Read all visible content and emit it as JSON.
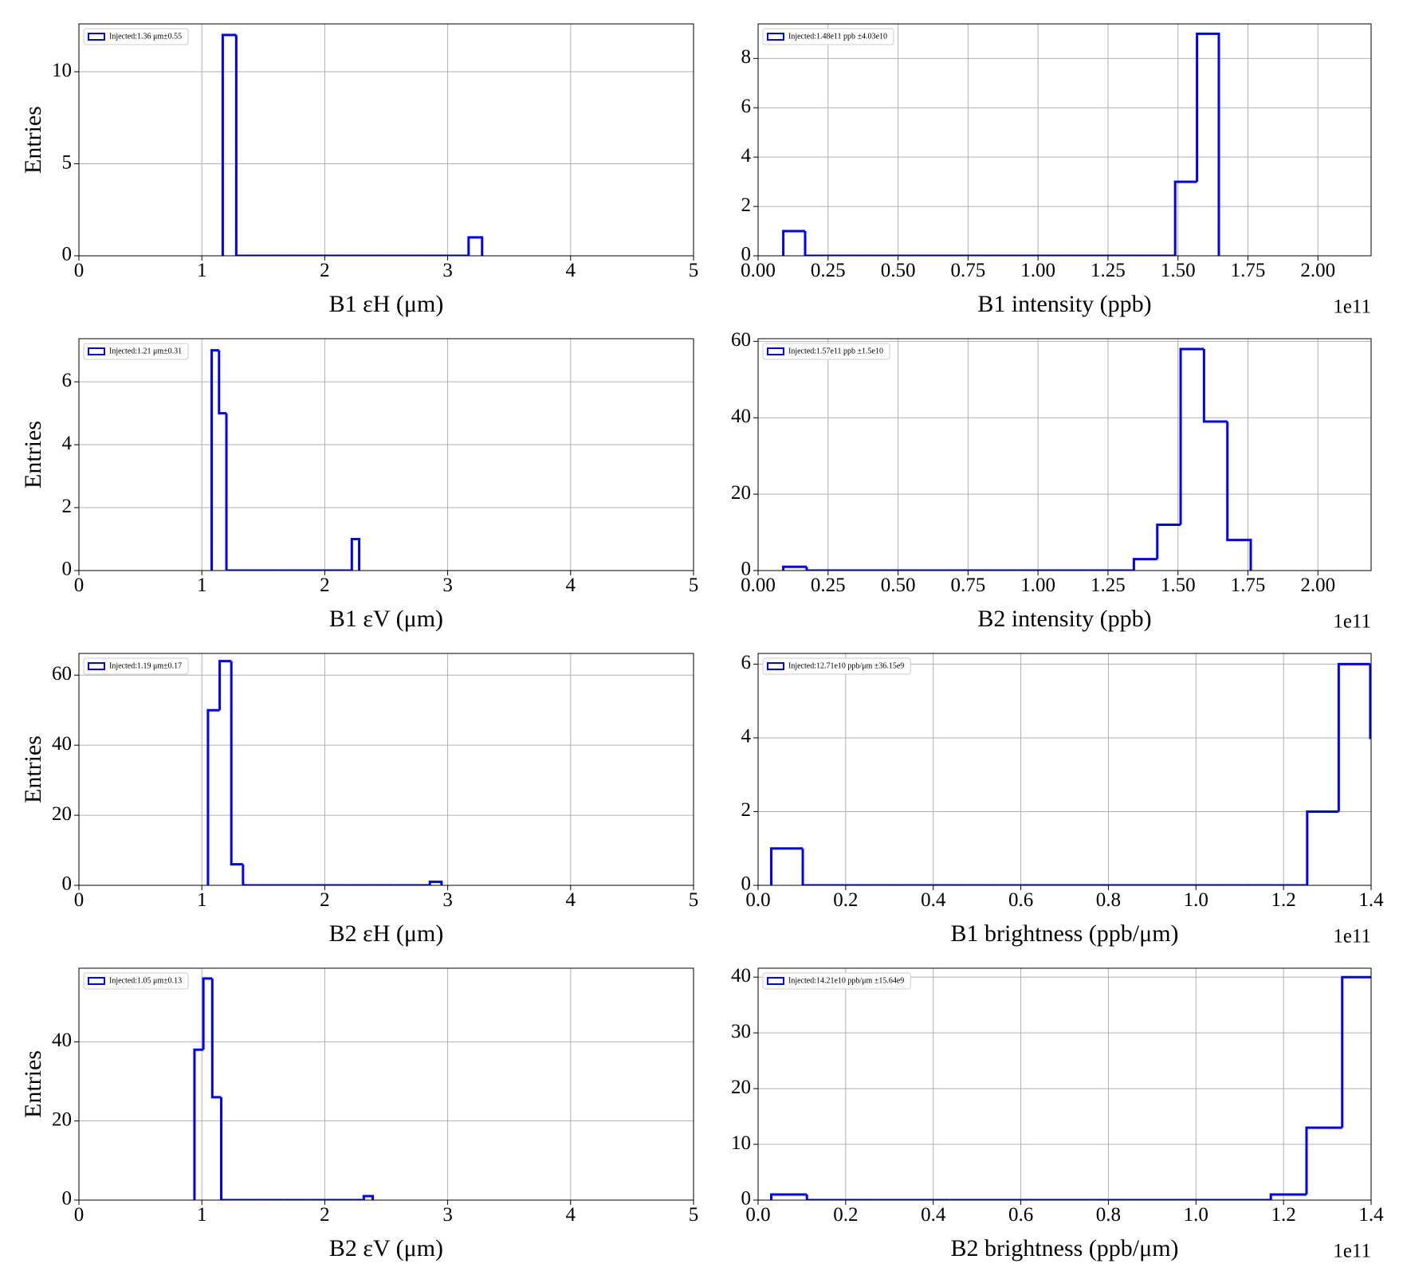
{
  "chart_data": [
    {
      "type": "histogram",
      "xlabel": "B1 εH (μm)",
      "ylabel": "Entries",
      "grid": true,
      "legend": "upper left",
      "xlim": [
        0,
        5
      ],
      "xticks": [
        0,
        1,
        2,
        3,
        4,
        5
      ],
      "ylim": [
        0,
        12.6
      ],
      "yticks": [
        0,
        5,
        10
      ],
      "bins": [
        1.17,
        1.28,
        1.38,
        1.49,
        1.59,
        1.7,
        1.8,
        1.91,
        2.01,
        2.12,
        2.23,
        2.33,
        2.44,
        2.54,
        2.65,
        2.75,
        2.86,
        2.96,
        3.07,
        3.17,
        3.28
      ],
      "series": [
        {
          "name": "Injected:1.36 μm±0.55",
          "color": "#0000ff",
          "values": [
            12,
            0,
            0,
            0,
            0,
            0,
            0,
            0,
            0,
            0,
            0,
            0,
            0,
            0,
            0,
            0,
            0,
            0,
            0,
            1
          ]
        }
      ]
    },
    {
      "type": "histogram",
      "xlabel": "B1 intensity (ppb)",
      "x_offset_label": "1e11",
      "grid": true,
      "legend": "upper left",
      "xlim": [
        0,
        2.19
      ],
      "xticks": [
        {
          "value": 0,
          "label": "0.00"
        },
        {
          "value": 0.25,
          "label": "0.25"
        },
        {
          "value": 0.5,
          "label": "0.50"
        },
        {
          "value": 0.75,
          "label": "0.75"
        },
        {
          "value": 1,
          "label": "1.00"
        },
        {
          "value": 1.25,
          "label": "1.25"
        },
        {
          "value": 1.5,
          "label": "1.50"
        },
        {
          "value": 1.75,
          "label": "1.75"
        },
        {
          "value": 2,
          "label": "2.00"
        }
      ],
      "ylim": [
        0,
        9.4
      ],
      "yticks": [
        0,
        2,
        4,
        6,
        8
      ],
      "bins": [
        0.09,
        0.168,
        0.246,
        0.323,
        0.401,
        0.479,
        0.557,
        0.635,
        0.712,
        0.79,
        0.868,
        0.946,
        1.024,
        1.101,
        1.179,
        1.257,
        1.335,
        1.413,
        1.49,
        1.568,
        1.646
      ],
      "series": [
        {
          "name": "Injected:1.48e11 ppb ±4.03e10",
          "color": "#0000ff",
          "values": [
            1,
            0,
            0,
            0,
            0,
            0,
            0,
            0,
            0,
            0,
            0,
            0,
            0,
            0,
            0,
            0,
            0,
            0,
            3,
            9
          ]
        }
      ]
    },
    {
      "type": "histogram",
      "xlabel": "B1 εV (μm)",
      "ylabel": "Entries",
      "grid": true,
      "legend": "upper left",
      "xlim": [
        0,
        5
      ],
      "xticks": [
        0,
        1,
        2,
        3,
        4,
        5
      ],
      "ylim": [
        0,
        7.37
      ],
      "yticks": [
        0,
        2,
        4,
        6
      ],
      "bins": [
        1.08,
        1.14,
        1.2,
        1.26,
        1.32,
        1.38,
        1.44,
        1.5,
        1.56,
        1.62,
        1.68,
        1.74,
        1.8,
        1.86,
        1.92,
        1.98,
        2.04,
        2.1,
        2.16,
        2.22,
        2.28
      ],
      "series": [
        {
          "name": "Injected:1.21 μm±0.31",
          "color": "#0000ff",
          "values": [
            7,
            5,
            0,
            0,
            0,
            0,
            0,
            0,
            0,
            0,
            0,
            0,
            0,
            0,
            0,
            0,
            0,
            0,
            0,
            1
          ]
        }
      ]
    },
    {
      "type": "histogram",
      "xlabel": "B2 intensity (ppb)",
      "x_offset_label": "1e11",
      "grid": true,
      "legend": "upper left",
      "xlim": [
        0,
        2.19
      ],
      "xticks": [
        {
          "value": 0,
          "label": "0.00"
        },
        {
          "value": 0.25,
          "label": "0.25"
        },
        {
          "value": 0.5,
          "label": "0.50"
        },
        {
          "value": 0.75,
          "label": "0.75"
        },
        {
          "value": 1,
          "label": "1.00"
        },
        {
          "value": 1.25,
          "label": "1.25"
        },
        {
          "value": 1.5,
          "label": "1.50"
        },
        {
          "value": 1.75,
          "label": "1.75"
        },
        {
          "value": 2,
          "label": "2.00"
        }
      ],
      "ylim": [
        0,
        60.7
      ],
      "yticks": [
        0,
        20,
        40,
        60
      ],
      "bins": [
        0.09,
        0.1735,
        0.257,
        0.3405,
        0.424,
        0.5075,
        0.591,
        0.6745,
        0.758,
        0.8415,
        0.925,
        1.0085,
        1.092,
        1.1755,
        1.259,
        1.3425,
        1.426,
        1.5095,
        1.593,
        1.6765,
        1.76
      ],
      "series": [
        {
          "name": "Injected:1.57e11 ppb ±1.5e10",
          "color": "#0000ff",
          "values": [
            1,
            0,
            0,
            0,
            0,
            0,
            0,
            0,
            0,
            0,
            0,
            0,
            0,
            0,
            0,
            3,
            12,
            58,
            39,
            8
          ]
        }
      ]
    },
    {
      "type": "histogram",
      "xlabel": "B2 εH (μm)",
      "ylabel": "Entries",
      "grid": true,
      "legend": "upper left",
      "xlim": [
        0,
        5
      ],
      "xticks": [
        0,
        1,
        2,
        3,
        4,
        5
      ],
      "ylim": [
        0,
        66.2
      ],
      "yticks": [
        0,
        20,
        40,
        60
      ],
      "bins": [
        1.05,
        1.145,
        1.24,
        1.335,
        1.43,
        1.525,
        1.62,
        1.715,
        1.81,
        1.905,
        2.0,
        2.095,
        2.19,
        2.285,
        2.38,
        2.475,
        2.57,
        2.665,
        2.76,
        2.855,
        2.95
      ],
      "series": [
        {
          "name": "Injected:1.19 μm±0.17",
          "color": "#0000ff",
          "values": [
            50,
            64,
            6,
            0,
            0,
            0,
            0,
            0,
            0,
            0,
            0,
            0,
            0,
            0,
            0,
            0,
            0,
            0,
            0,
            1
          ]
        }
      ]
    },
    {
      "type": "histogram",
      "xlabel": "B1 brightness (ppb/μm)",
      "x_offset_label": "1e11",
      "grid": true,
      "legend": "upper left",
      "xlim": [
        0,
        1.4
      ],
      "xticks": [
        {
          "value": 0,
          "label": "0.0"
        },
        {
          "value": 0.2,
          "label": "0.2"
        },
        {
          "value": 0.4,
          "label": "0.4"
        },
        {
          "value": 0.6,
          "label": "0.6"
        },
        {
          "value": 0.8,
          "label": "0.8"
        },
        {
          "value": 1,
          "label": "1.0"
        },
        {
          "value": 1.2,
          "label": "1.2"
        },
        {
          "value": 1.4,
          "label": "1.4"
        }
      ],
      "ylim": [
        0,
        6.29
      ],
      "yticks": [
        0,
        2,
        4,
        6
      ],
      "bins": [
        0.03,
        0.102,
        0.174,
        0.246,
        0.318,
        0.39,
        0.462,
        0.534,
        0.606,
        0.678,
        0.75,
        0.822,
        0.894,
        0.966,
        1.038,
        1.11,
        1.182,
        1.254,
        1.326,
        1.398,
        1.47
      ],
      "series": [
        {
          "name": "Injected:12.71e10 ppb/μm ±36.15e9",
          "color": "#0000ff",
          "values": [
            1,
            0,
            0,
            0,
            0,
            0,
            0,
            0,
            0,
            0,
            0,
            0,
            0,
            0,
            0,
            0,
            0,
            2,
            6,
            4
          ]
        }
      ]
    },
    {
      "type": "histogram",
      "xlabel": "B2 εV (μm)",
      "ylabel": "Entries",
      "grid": true,
      "legend": "upper left",
      "xlim": [
        0,
        5
      ],
      "xticks": [
        0,
        1,
        2,
        3,
        4,
        5
      ],
      "ylim": [
        0,
        58.6
      ],
      "yticks": [
        0,
        20,
        40
      ],
      "bins": [
        0.94,
        1.0125,
        1.085,
        1.1575,
        1.23,
        1.3025,
        1.375,
        1.4475,
        1.52,
        1.5925,
        1.665,
        1.7375,
        1.81,
        1.8825,
        1.955,
        2.0275,
        2.1,
        2.1725,
        2.245,
        2.3175,
        2.39
      ],
      "series": [
        {
          "name": "Injected:1.05 μm±0.13",
          "color": "#0000ff",
          "values": [
            38,
            56,
            26,
            0,
            0,
            0,
            0,
            0,
            0,
            0,
            0,
            0,
            0,
            0,
            0,
            0,
            0,
            0,
            0,
            1
          ]
        }
      ]
    },
    {
      "type": "histogram",
      "xlabel": "B2 brightness (ppb/μm)",
      "x_offset_label": "1e11",
      "grid": true,
      "legend": "upper left",
      "xlim": [
        0,
        1.4
      ],
      "xticks": [
        {
          "value": 0,
          "label": "0.0"
        },
        {
          "value": 0.2,
          "label": "0.2"
        },
        {
          "value": 0.4,
          "label": "0.4"
        },
        {
          "value": 0.6,
          "label": "0.6"
        },
        {
          "value": 0.8,
          "label": "0.8"
        },
        {
          "value": 1,
          "label": "1.0"
        },
        {
          "value": 1.2,
          "label": "1.2"
        },
        {
          "value": 1.4,
          "label": "1.4"
        }
      ],
      "ylim": [
        0,
        41.6
      ],
      "yticks": [
        0,
        10,
        20,
        30,
        40
      ],
      "bins": [
        0.03,
        0.1115,
        0.193,
        0.2745,
        0.356,
        0.4375,
        0.519,
        0.6005,
        0.682,
        0.7635,
        0.845,
        0.9265,
        1.008,
        1.0895,
        1.171,
        1.2525,
        1.334,
        1.4155
      ],
      "series": [
        {
          "name": "Injected:14.21e10 ppb/μm ±15.64e9",
          "color": "#0000ff",
          "values": [
            1,
            0,
            0,
            0,
            0,
            0,
            0,
            0,
            0,
            0,
            0,
            0,
            0,
            0,
            1,
            13,
            40
          ]
        }
      ]
    }
  ]
}
